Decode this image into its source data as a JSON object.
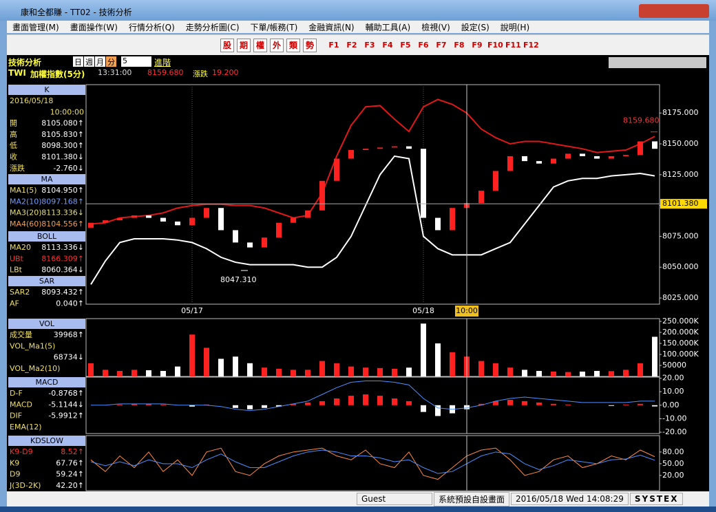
{
  "window": {
    "title": "康和全都賺 - TT02 - 技術分析"
  },
  "menu": [
    "畫面管理(M)",
    "畫面操作(W)",
    "行情分析(Q)",
    "走勢分析圖(C)",
    "下單/帳務(T)",
    "金融資訊(N)",
    "輔助工具(A)",
    "檢視(V)",
    "設定(S)",
    "說明(H)"
  ],
  "toolbar": {
    "symbols": [
      "股",
      "期",
      "權",
      "外",
      "類",
      "勢"
    ],
    "function_keys": [
      "F1",
      "F2",
      "F3",
      "F4",
      "F5",
      "F6",
      "F7",
      "F8",
      "F9",
      "F10",
      "F11",
      "F12"
    ]
  },
  "header": {
    "title": "技術分析",
    "periods": [
      "日",
      "週",
      "月",
      "分"
    ],
    "period_value": "5",
    "advanced": "進階",
    "symbol": "TWI",
    "name": "加權指數(5分)",
    "time": "13:31:00",
    "price": "8159.680",
    "change_label": "漲跌",
    "change": "19.200"
  },
  "left_panel": [
    {
      "title": "K",
      "rows": [
        {
          "label": "2016/05/18"
        },
        {
          "value": "10:00:00"
        },
        {
          "label": "開",
          "value": "8105.080↑",
          "color": "#ffffff"
        },
        {
          "label": "高",
          "value": "8105.830↑",
          "color": "#ffffff"
        },
        {
          "label": "低",
          "value": "8098.300↑",
          "color": "#ffffff"
        },
        {
          "label": "收",
          "value": "8101.380↓",
          "color": "#ffffff"
        },
        {
          "label": "漲跌",
          "value": "-2.760↓",
          "color": "#ffffff"
        }
      ]
    },
    {
      "title": "MA",
      "rows": [
        {
          "label": "MA1(5)",
          "value": "8104.950↑",
          "color": "#ffffff"
        },
        {
          "label": "MA2(10)",
          "value": "8097.168↑",
          "color": "#6f9bff"
        },
        {
          "label": "MA3(20)",
          "value": "8113.336↓",
          "color": "#e8e070"
        },
        {
          "label": "MA4(60)",
          "value": "8104.556↑",
          "color": "#f0a050"
        }
      ]
    },
    {
      "title": "BOLL",
      "rows": [
        {
          "label": "MA20",
          "value": "8113.336↓",
          "color": "#ffffff"
        },
        {
          "label": "UBt",
          "value": "8166.309↑",
          "color": "#ff3030"
        },
        {
          "label": "LBt",
          "value": "8060.364↓",
          "color": "#ffffff"
        }
      ]
    },
    {
      "title": "SAR",
      "rows": [
        {
          "label": "SAR2",
          "value": "8093.432↑",
          "color": "#ffffff"
        },
        {
          "label": "AF",
          "value": "0.040↑",
          "color": "#ffffff"
        }
      ]
    },
    {
      "title": "VOL",
      "rows": [
        {
          "label": "成交量",
          "value": "39968↑",
          "color": "#ffffff"
        },
        {
          "label": "VOL_Ma1(5)"
        },
        {
          "value": "68734↓",
          "color": "#ffffff"
        },
        {
          "label": "VOL_Ma2(10)"
        }
      ]
    },
    {
      "title": "MACD",
      "rows": [
        {
          "label": "D-F",
          "value": "-0.8768↑",
          "color": "#ffffff"
        },
        {
          "label": "MACD",
          "value": "-5.1144↓",
          "color": "#ffffff"
        },
        {
          "label": "DIF",
          "value": "-5.9912↑",
          "color": "#ffffff"
        },
        {
          "label": "EMA(12)"
        }
      ]
    },
    {
      "title": "KDSLOW",
      "rows": [
        {
          "label": "K9-D9",
          "value": "8.52↑",
          "color": "#ff3030"
        },
        {
          "label": "K9",
          "value": "67.76↑",
          "color": "#ffffff"
        },
        {
          "label": "D9",
          "value": "59.24↑",
          "color": "#ffffff"
        },
        {
          "label": "J(3D-2K)",
          "value": "42.20↑",
          "color": "#ffffff"
        }
      ]
    }
  ],
  "chart_data": [
    {
      "type": "candlestick",
      "categories": [
        null,
        null,
        null,
        null,
        null,
        null,
        null,
        "05/17",
        null,
        null,
        null,
        null,
        null,
        null,
        null,
        null,
        null,
        null,
        null,
        null,
        null,
        null,
        null,
        "05/18",
        null,
        null,
        "10:00",
        null,
        null,
        null,
        null,
        null,
        null,
        null,
        null,
        null,
        null,
        null,
        null,
        null
      ],
      "open": [
        8082,
        8086,
        8088,
        8090,
        8092,
        8090,
        8087,
        8084,
        8090,
        8098,
        8080,
        8070,
        8066,
        8074,
        8086,
        8090,
        8096,
        8120,
        8138,
        8145,
        8146,
        8147,
        8148,
        8146,
        8090,
        8080,
        8098,
        8102,
        8112,
        8128,
        8140,
        8136,
        8134,
        8138,
        8142,
        8140,
        8138,
        8140,
        8141,
        8152
      ],
      "close": [
        8086,
        8088,
        8090,
        8092,
        8090,
        8087,
        8084,
        8090,
        8098,
        8080,
        8070,
        8066,
        8074,
        8086,
        8090,
        8096,
        8120,
        8138,
        8145,
        8146,
        8147,
        8148,
        8146,
        8090,
        8080,
        8098,
        8102,
        8112,
        8128,
        8140,
        8136,
        8134,
        8138,
        8142,
        8140,
        8138,
        8140,
        8141,
        8152,
        8146
      ],
      "up_color": "#ff2020",
      "down_color": "#ffffff",
      "series": [
        {
          "color": "#e01818",
          "values": [
            8085,
            8086,
            8090,
            8091,
            8092,
            8094,
            8098,
            8100,
            8101,
            8101,
            8100,
            8100,
            8098,
            8094,
            8090,
            8092,
            8110,
            8140,
            8165,
            8180,
            8181,
            8170,
            8160,
            8180,
            8186,
            8182,
            8175,
            8162,
            8155,
            8150,
            8152,
            8152,
            8150,
            8148,
            8146,
            8143,
            8144,
            8145,
            8150,
            8156
          ]
        },
        {
          "color": "#ffffff",
          "values": [
            8036,
            8055,
            8070,
            8073,
            8073,
            8073,
            8072,
            8070,
            8065,
            8058,
            8054,
            8052,
            8052,
            8052,
            8052,
            8050,
            8050,
            8058,
            8075,
            8100,
            8125,
            8140,
            8138,
            8075,
            8065,
            8060,
            8060,
            8060,
            8065,
            8070,
            8085,
            8100,
            8115,
            8120,
            8122,
            8122,
            8124,
            8125,
            8126,
            8124
          ]
        }
      ],
      "ylim": [
        8020,
        8198
      ],
      "yticks": [
        {
          "value": 8025,
          "label": "8025.000"
        },
        {
          "value": 8050,
          "label": "8050.000"
        },
        {
          "value": 8075,
          "label": "8075.000"
        },
        {
          "value": 8100,
          "label": "8100.000"
        },
        {
          "value": 8125,
          "label": "8125.000"
        },
        {
          "value": 8150,
          "label": "8150.000"
        },
        {
          "value": 8175,
          "label": "8175.000"
        }
      ],
      "annotations": [
        {
          "value": 8101.38,
          "label": "8101.380"
        },
        {
          "value": 8159.68,
          "label": "8159.680"
        },
        {
          "value": 8047.31,
          "label": "8047.310"
        }
      ]
    },
    {
      "type": "bar",
      "values": [
        60000,
        30000,
        25000,
        30000,
        28000,
        25000,
        45000,
        190000,
        130000,
        80000,
        90000,
        60000,
        40000,
        35000,
        30000,
        30000,
        70000,
        60000,
        45000,
        40000,
        38000,
        35000,
        40000,
        240000,
        150000,
        110000,
        90000,
        70000,
        60000,
        40000,
        30000,
        25000,
        22000,
        20000,
        22000,
        25000,
        24000,
        30000,
        60000,
        180000
      ],
      "ylim": [
        0,
        262500
      ],
      "yticks": [
        50000,
        {
          "value": 100000,
          "label": "100.000K"
        },
        {
          "value": 150000,
          "label": "150.000K"
        },
        {
          "value": 200000,
          "label": "200.000K"
        },
        {
          "value": 250000,
          "label": "250.000K"
        }
      ]
    },
    {
      "type": "macd",
      "values": [
        0,
        0,
        0.5,
        1,
        1,
        0.5,
        0,
        -1,
        0.5,
        0,
        -2,
        -3,
        -2,
        -1,
        1,
        2,
        3,
        5,
        7,
        8,
        7,
        5,
        3,
        -5,
        -8,
        -6,
        -3,
        1,
        3,
        4,
        3,
        2,
        1,
        0.5,
        0,
        0,
        -0.5,
        0.5,
        1,
        -0.9
      ],
      "series": [
        {
          "color": "#4a90ff",
          "values": [
            0,
            0,
            1,
            1,
            1,
            1,
            0,
            0,
            0,
            -1,
            -3,
            -4,
            -3,
            -1,
            1,
            3,
            8,
            13,
            17,
            18,
            18,
            17,
            15,
            5,
            -2,
            -3,
            -2,
            0,
            3,
            5,
            6,
            5,
            4,
            3,
            2,
            2,
            2,
            2,
            3,
            3
          ]
        }
      ],
      "ylim": [
        -21,
        20.8
      ],
      "yticks": [
        {
          "value": 20,
          "label": "20.00"
        },
        {
          "value": 10,
          "label": "10.00"
        },
        {
          "value": 0,
          "label": "0.00"
        },
        {
          "value": -10,
          "label": "-10.00"
        },
        {
          "value": -20,
          "label": "-20.00"
        }
      ]
    },
    {
      "type": "line",
      "series": [
        {
          "color": "#ff8c40",
          "values": [
            60,
            30,
            70,
            40,
            80,
            30,
            60,
            20,
            80,
            90,
            30,
            20,
            50,
            70,
            80,
            85,
            90,
            70,
            60,
            85,
            50,
            40,
            80,
            20,
            10,
            40,
            70,
            85,
            90,
            60,
            20,
            30,
            60,
            70,
            40,
            50,
            70,
            60,
            85,
            68
          ]
        },
        {
          "color": "#4a90ff",
          "values": [
            55,
            45,
            55,
            45,
            60,
            50,
            50,
            40,
            60,
            75,
            55,
            40,
            40,
            55,
            70,
            80,
            85,
            80,
            70,
            70,
            65,
            55,
            60,
            40,
            25,
            30,
            50,
            70,
            80,
            75,
            50,
            35,
            45,
            60,
            55,
            50,
            60,
            62,
            72,
            59
          ]
        }
      ],
      "ylim": [
        -19,
        122
      ],
      "yticks": [
        {
          "value": 80,
          "label": "80.00"
        },
        {
          "value": 50,
          "label": "50.00"
        },
        {
          "value": 20,
          "label": "20.00"
        }
      ]
    }
  ],
  "status": {
    "user": "Guest",
    "layout": "系統預設自設畫面",
    "datetime": "2016/05/18 Wed 14:08:29",
    "brand": "SYSTEX"
  }
}
